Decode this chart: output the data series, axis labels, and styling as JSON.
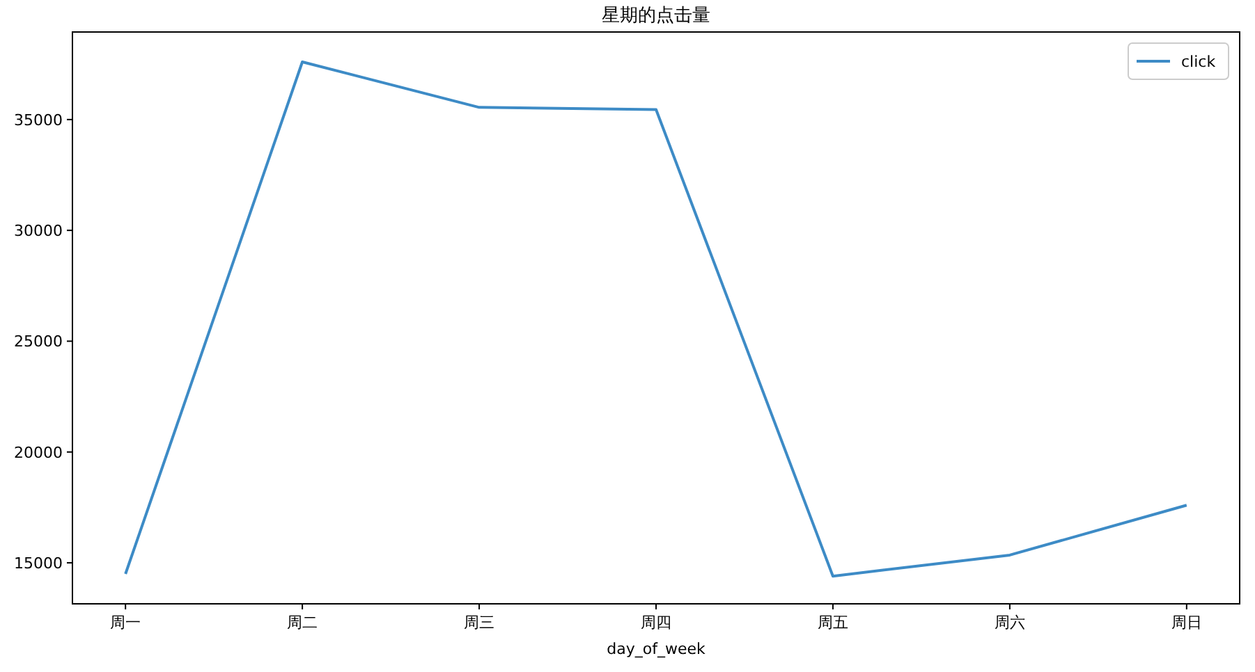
{
  "chart_data": {
    "type": "line",
    "title": "星期的点击量",
    "xlabel": "day_of_week",
    "categories": [
      "周一",
      "周二",
      "周三",
      "周四",
      "周五",
      "周六",
      "周日"
    ],
    "series": [
      {
        "name": "click",
        "color": "#3d8bc6",
        "values": [
          14500,
          37600,
          35550,
          35450,
          14400,
          15350,
          17600
        ]
      }
    ],
    "ylim": [
      13150,
      38950
    ],
    "yticks": [
      15000,
      20000,
      25000,
      30000,
      35000
    ],
    "grid": false,
    "legend": "top right"
  }
}
